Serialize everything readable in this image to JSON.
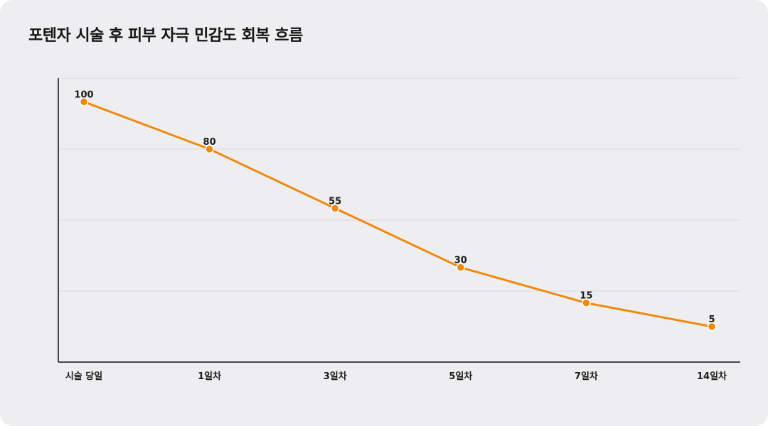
{
  "chart_data": {
    "type": "line",
    "title": "포텐자 시술 후 피부 자극 민감도 회복 흐름",
    "xlabel": "",
    "ylabel": "",
    "categories": [
      "시술 당일",
      "1일차",
      "3일차",
      "5일차",
      "7일차",
      "14일차"
    ],
    "series": [
      {
        "values": [
          100,
          80,
          55,
          30,
          15,
          5
        ],
        "color": "#f0890f"
      }
    ],
    "ylim": [
      -10,
      110
    ],
    "grid": true,
    "legend": "none",
    "data_labels": [
      "100",
      "80",
      "55",
      "30",
      "15",
      "5"
    ]
  },
  "colors": {
    "background": "#eeeef0",
    "line": "#f0890f",
    "marker_stroke": "#ffffff",
    "grid": "#d9d9dd",
    "axis": "#111111"
  }
}
